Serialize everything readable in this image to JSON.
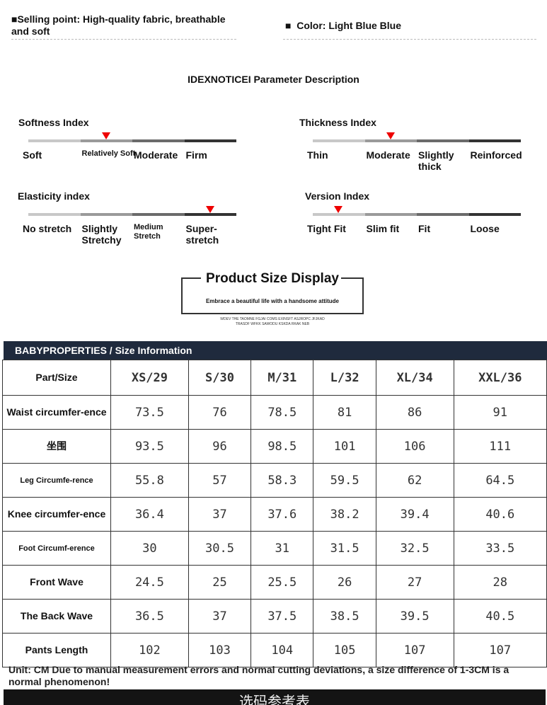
{
  "header": {
    "selling_point": "Selling point: High-quality fabric, breathable and soft",
    "color": "Color: Light Blue Blue"
  },
  "section_title": "IDEXNOTICEI Parameter Description",
  "indices": [
    {
      "label": "Softness Index",
      "options": [
        "Soft",
        "Relatively Soft",
        "Moderate",
        "Firm"
      ],
      "selected": 1
    },
    {
      "label": "Thickness Index",
      "options": [
        "Thin",
        "Moderate",
        "Slightly thick",
        "Reinforced"
      ],
      "selected": 1
    },
    {
      "label": "Elasticity index",
      "options": [
        "No stretch",
        "Slightly Stretchy",
        "Medium Stretch",
        "Super-stretch"
      ],
      "selected": 3
    },
    {
      "label": "Version Index",
      "options": [
        "Tight Fit",
        "Slim fit",
        "Fit",
        "Loose"
      ],
      "selected": 0
    }
  ],
  "banner": {
    "title": "Product Size Display",
    "subtitle": "Embrace a beautiful life with a handsome attitude",
    "small1": "WDEV THE TAOMNE FGJAI COMS EXINSFT ASJROPC JFJKAD",
    "small2": "TRASDF WFKK SAWODU KSKDA RKAK NEB"
  },
  "size_header": "BABYPROPERTIES / Size Information",
  "table": {
    "headers": [
      "Part/Size",
      "XS/29",
      "S/30",
      "M/31",
      "L/32",
      "XL/34",
      "XXL/36"
    ],
    "rows": [
      {
        "label": "Waist circumfer-ence",
        "values": [
          "73.5",
          "76",
          "78.5",
          "81",
          "86",
          "91"
        ]
      },
      {
        "label": "坐围",
        "values": [
          "93.5",
          "96",
          "98.5",
          "101",
          "106",
          "111"
        ]
      },
      {
        "label": "Leg Circumfe-rence",
        "values": [
          "55.8",
          "57",
          "58.3",
          "59.5",
          "62",
          "64.5"
        ],
        "small": true
      },
      {
        "label": "Knee circumfer-ence",
        "values": [
          "36.4",
          "37",
          "37.6",
          "38.2",
          "39.4",
          "40.6"
        ]
      },
      {
        "label": "Foot Circumf-erence",
        "values": [
          "30",
          "30.5",
          "31",
          "31.5",
          "32.5",
          "33.5"
        ],
        "small": true
      },
      {
        "label": "Front Wave",
        "values": [
          "24.5",
          "25",
          "25.5",
          "26",
          "27",
          "28"
        ]
      },
      {
        "label": "The Back Wave",
        "values": [
          "36.5",
          "37",
          "37.5",
          "38.5",
          "39.5",
          "40.5"
        ]
      },
      {
        "label": "Pants Length",
        "values": [
          "102",
          "103",
          "104",
          "105",
          "107",
          "107"
        ]
      }
    ]
  },
  "note": "Unit: CM Due to manual measurement errors and normal cutting deviations, a size difference of 1-3CM is a normal phenomenon!",
  "footer_cn": "选码参考表"
}
